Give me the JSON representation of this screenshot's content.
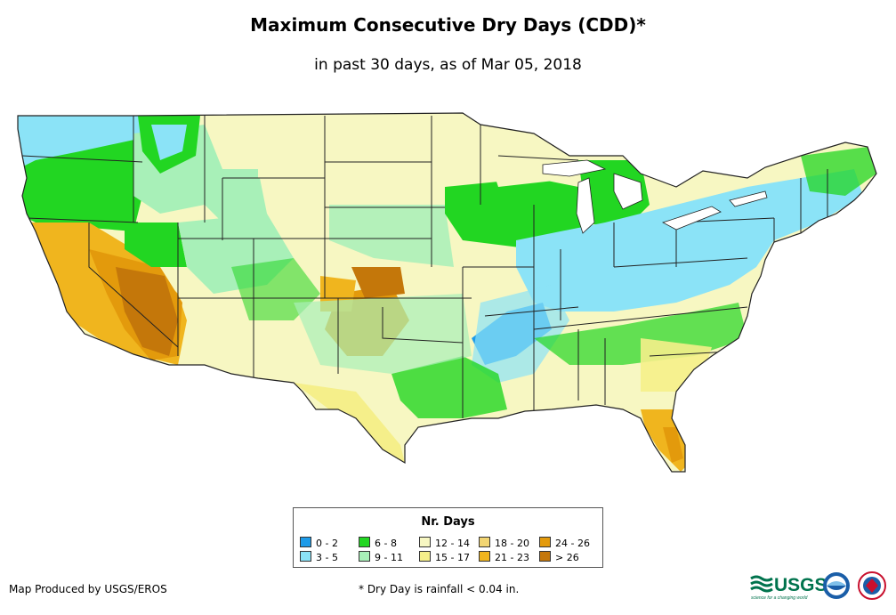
{
  "title": "Maximum Consecutive Dry Days (CDD)*",
  "subtitle": "in past 30 days, as of Mar 05, 2018",
  "legend": {
    "title": "Nr. Days",
    "items": [
      {
        "label": "0 - 2",
        "color": "#1e9be8"
      },
      {
        "label": "3 - 5",
        "color": "#8be3f7"
      },
      {
        "label": "6 - 8",
        "color": "#22d622"
      },
      {
        "label": "9 - 11",
        "color": "#a8f0b8"
      },
      {
        "label": "12 - 14",
        "color": "#f7f7c2"
      },
      {
        "label": "15 - 17",
        "color": "#f5ef8a"
      },
      {
        "label": "18 - 20",
        "color": "#f2d572"
      },
      {
        "label": "21 - 23",
        "color": "#f0b51e"
      },
      {
        "label": "24 - 26",
        "color": "#e39a0c"
      },
      {
        "label": "> 26",
        "color": "#c4770a"
      }
    ]
  },
  "footer": {
    "credit": "Map Produced by USGS/EROS",
    "note": "* Dry Day is rainfall < 0.04 in.",
    "usgs_logo_text": "USGS",
    "usgs_tagline": "science for a changing world"
  }
}
